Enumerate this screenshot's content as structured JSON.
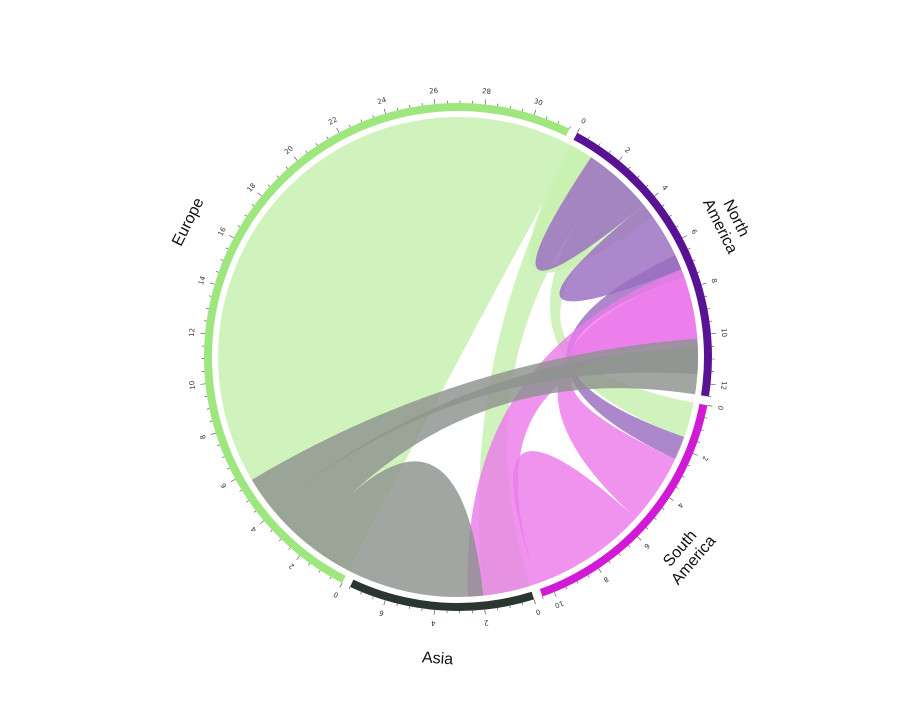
{
  "chart_data": {
    "type": "chord",
    "title": "",
    "sectors": [
      {
        "name": "North America",
        "label_lines": [
          "North",
          "America"
        ],
        "total": 12.5,
        "color": "#5a1294"
      },
      {
        "name": "South America",
        "label_lines": [
          "South",
          "America"
        ],
        "total": 10.5,
        "color": "#d11ad6"
      },
      {
        "name": "Asia",
        "label_lines": [
          "Asia"
        ],
        "total": 7.5,
        "color": "#2b3630"
      },
      {
        "name": "Europe",
        "label_lines": [
          "Europe"
        ],
        "total": 31.5,
        "color": "#9ee67e"
      }
    ],
    "flows": [
      {
        "from": "Europe",
        "to": "Europe",
        "value": 16,
        "color": "#c6f0b0"
      },
      {
        "from": "Europe",
        "to": "Asia",
        "value": 2,
        "color": "#c6f0b0"
      },
      {
        "from": "Europe",
        "to": "South America",
        "value": 1.5,
        "color": "#c6f0b0"
      },
      {
        "from": "Europe",
        "to": "North America",
        "value": 1,
        "color": "#c6f0b0"
      },
      {
        "from": "North America",
        "to": "North America",
        "value": 1.5,
        "color": "#9a6cc0"
      },
      {
        "from": "North America",
        "to": "Europe",
        "value": 2.5,
        "color": "#9a6cc0"
      },
      {
        "from": "North America",
        "to": "South America",
        "value": 1,
        "color": "#9a6cc0"
      },
      {
        "from": "South America",
        "to": "North America",
        "value": 3,
        "color": "#ec7bea"
      },
      {
        "from": "South America",
        "to": "South America",
        "value": 2.5,
        "color": "#ec7bea"
      },
      {
        "from": "South America",
        "to": "Europe",
        "value": 3,
        "color": "#ec7bea"
      },
      {
        "from": "Asia",
        "to": "Asia",
        "value": 4,
        "color": "#8e928f"
      },
      {
        "from": "Asia",
        "to": "North America",
        "value": 2,
        "color": "#8e928f"
      },
      {
        "from": "Asia",
        "to": "Europe",
        "value": 1.5,
        "color": "#8e928f"
      }
    ]
  }
}
